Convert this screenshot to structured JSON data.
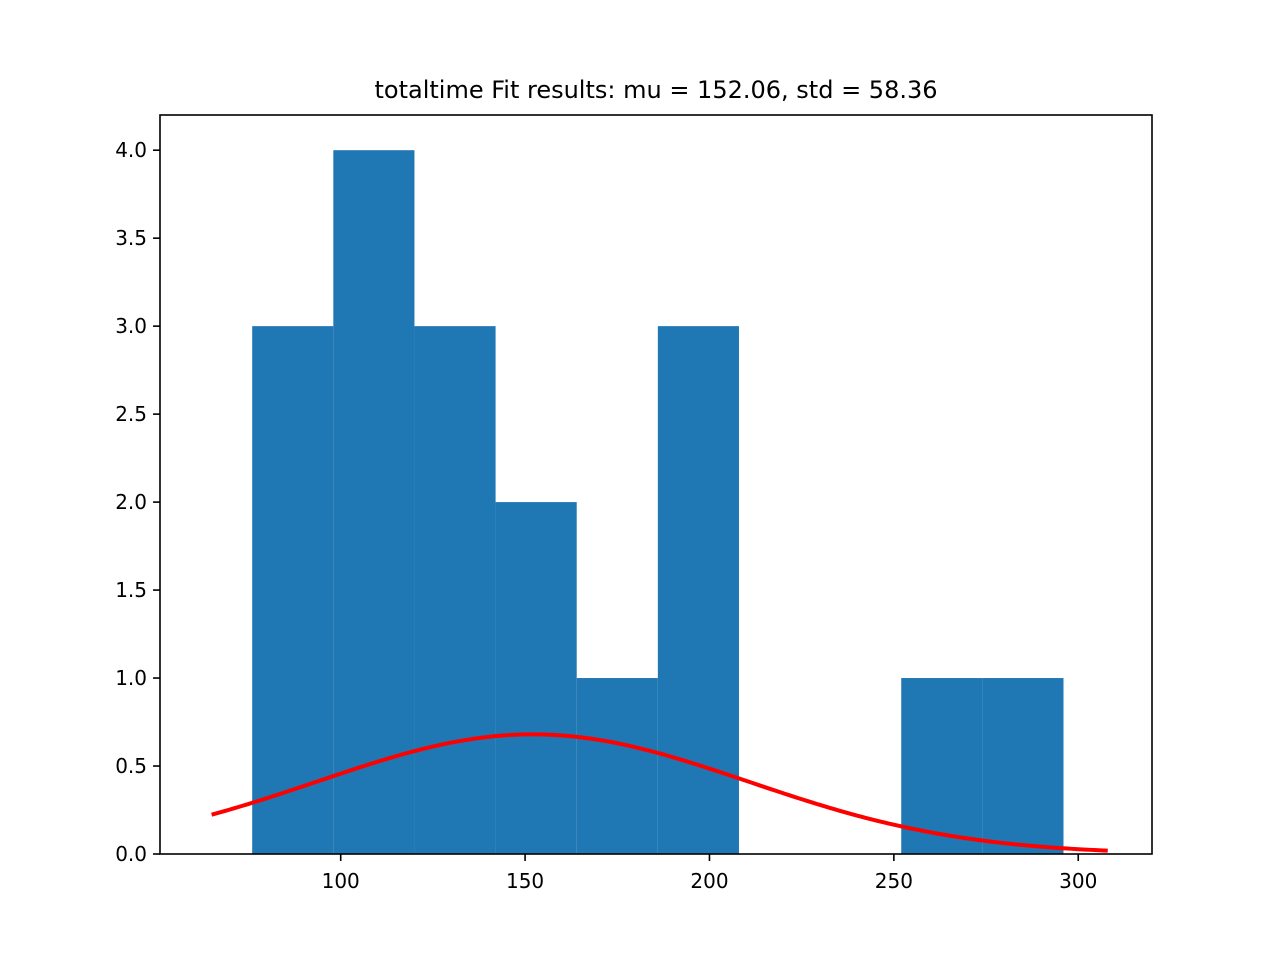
{
  "chart_data": {
    "type": "bar",
    "title": "totaltime Fit results: mu = 152.06,  std = 58.36",
    "xlabel": "",
    "ylabel": "",
    "xlim": [
      51,
      320
    ],
    "ylim": [
      0,
      4.2
    ],
    "grid": false,
    "xticks": [
      100,
      150,
      200,
      250,
      300
    ],
    "xtick_labels": [
      "100",
      "150",
      "200",
      "250",
      "300"
    ],
    "yticks": [
      0.0,
      0.5,
      1.0,
      1.5,
      2.0,
      2.5,
      3.0,
      3.5,
      4.0
    ],
    "ytick_labels": [
      "0.0",
      "0.5",
      "1.0",
      "1.5",
      "2.0",
      "2.5",
      "3.0",
      "3.5",
      "4.0"
    ],
    "bin_edges": [
      76,
      98,
      120,
      142,
      164,
      186,
      208,
      230,
      252,
      274,
      296
    ],
    "counts": [
      3,
      4,
      3,
      2,
      1,
      3,
      0,
      0,
      1,
      1
    ],
    "bar_color": "#1f77b4",
    "fit_curve": {
      "type": "normal_pdf_scaled",
      "mu": 152.06,
      "std": 58.36,
      "peak": 0.68,
      "x_range": [
        65,
        308
      ],
      "color": "#ff0000"
    }
  }
}
